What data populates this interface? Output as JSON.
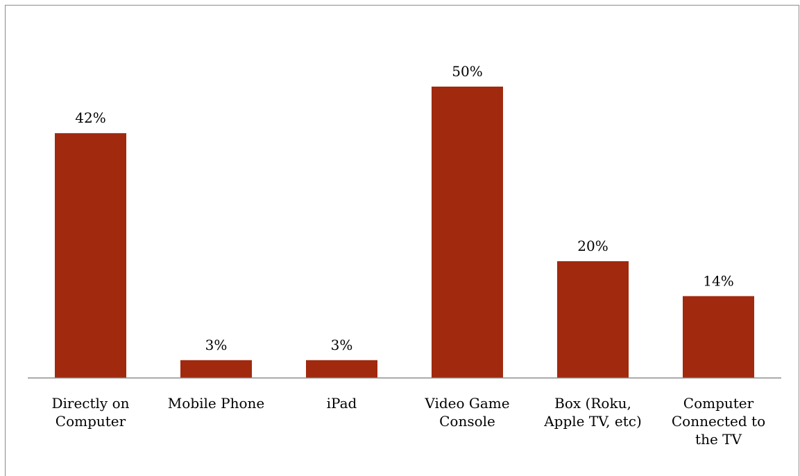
{
  "chart_data": {
    "type": "bar",
    "title": "",
    "xlabel": "",
    "ylabel": "",
    "categories": [
      [
        "Directly on",
        "Computer"
      ],
      [
        "Mobile Phone"
      ],
      [
        "iPad"
      ],
      [
        "Video Game",
        "Console"
      ],
      [
        "Box (Roku,",
        "Apple TV, etc)"
      ],
      [
        "Computer",
        "Connected to",
        "the TV"
      ]
    ],
    "values": [
      42,
      3,
      3,
      50,
      20,
      14
    ],
    "data_labels": [
      "42%",
      "3%",
      "3%",
      "50%",
      "20%",
      "14%"
    ],
    "value_unit": "%",
    "ylim": [
      0,
      65
    ],
    "grid": false,
    "legend": "none",
    "bar_color": "#a0290e",
    "axis_color": "#8c8c8c"
  }
}
